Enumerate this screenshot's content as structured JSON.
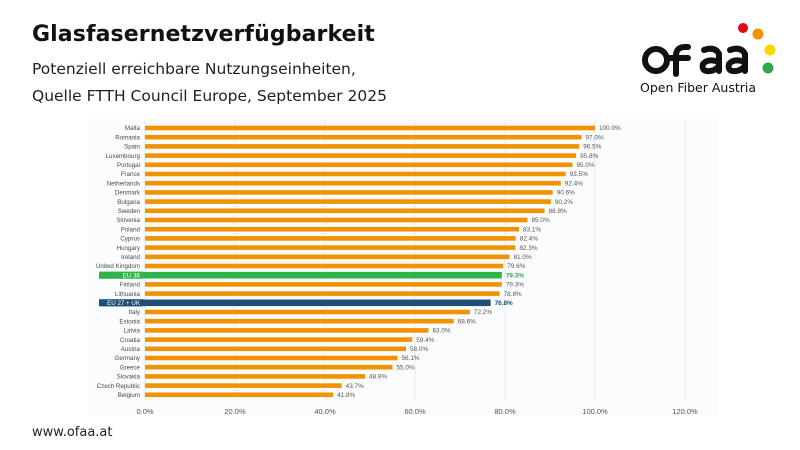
{
  "header": {
    "title": "Glasfasernetzverfügbarkeit",
    "subtitle_line1": "Potenziell erreichbare Nutzungseinheiten,",
    "subtitle_line2": "Quelle FTTH Council Europe, September 2025"
  },
  "logo": {
    "wordmark": "ofaa",
    "tagline": "Open Fiber Austria",
    "dot_colors": [
      "#e30613",
      "#f39200",
      "#ffd500",
      "#2fa84f"
    ]
  },
  "footer": {
    "url": "www.ofaa.at"
  },
  "colors": {
    "default_bar": "#f39200",
    "eu_bar": "#2fb34a",
    "eu_uk_bar": "#1f4e79",
    "gridline": "#dde3ea"
  },
  "chart_data": {
    "type": "bar",
    "orientation": "horizontal",
    "categories": [
      "Malta",
      "Romania",
      "Spain",
      "Luxembourg",
      "Portugal",
      "France",
      "Netherlands",
      "Denmark",
      "Bulgaria",
      "Sweden",
      "Slovenia",
      "Poland",
      "Cyprus",
      "Hungary",
      "Ireland",
      "United Kingdom",
      "EU 38",
      "Finland",
      "Lithuania",
      "EU 27 + UK",
      "Italy",
      "Estonia",
      "Latvia",
      "Croatia",
      "Austria",
      "Germany",
      "Greece",
      "Slovakia",
      "Czech Republic",
      "Belgium"
    ],
    "values": [
      100.0,
      97.0,
      96.5,
      95.8,
      95.0,
      93.5,
      92.4,
      90.6,
      90.2,
      88.8,
      85.0,
      83.1,
      82.4,
      82.3,
      81.0,
      79.6,
      79.3,
      79.3,
      78.8,
      76.8,
      72.2,
      68.6,
      63.0,
      59.4,
      58.0,
      56.1,
      55.0,
      48.9,
      43.7,
      41.8
    ],
    "value_labels": [
      "100.0%",
      "97.0%",
      "96.5%",
      "95.8%",
      "95.0%",
      "93.5%",
      "92.4%",
      "90.6%",
      "90.2%",
      "88.8%",
      "85.0%",
      "83.1%",
      "82.4%",
      "82.3%",
      "81.0%",
      "79.6%",
      "79.3%",
      "79.3%",
      "78.8%",
      "76.8%",
      "72.2%",
      "68.6%",
      "63.0%",
      "59.4%",
      "58.0%",
      "56.1%",
      "55.0%",
      "48.9%",
      "43.7%",
      "41.8%"
    ],
    "highlights": {
      "EU 38": "eu",
      "EU 27 + UK": "eu_uk"
    },
    "xlim": [
      0,
      120
    ],
    "xticks": [
      "0.0%",
      "20.0%",
      "40.0%",
      "60.0%",
      "80.0%",
      "100.0%",
      "120.0%"
    ],
    "grid": true,
    "legend": "none"
  }
}
